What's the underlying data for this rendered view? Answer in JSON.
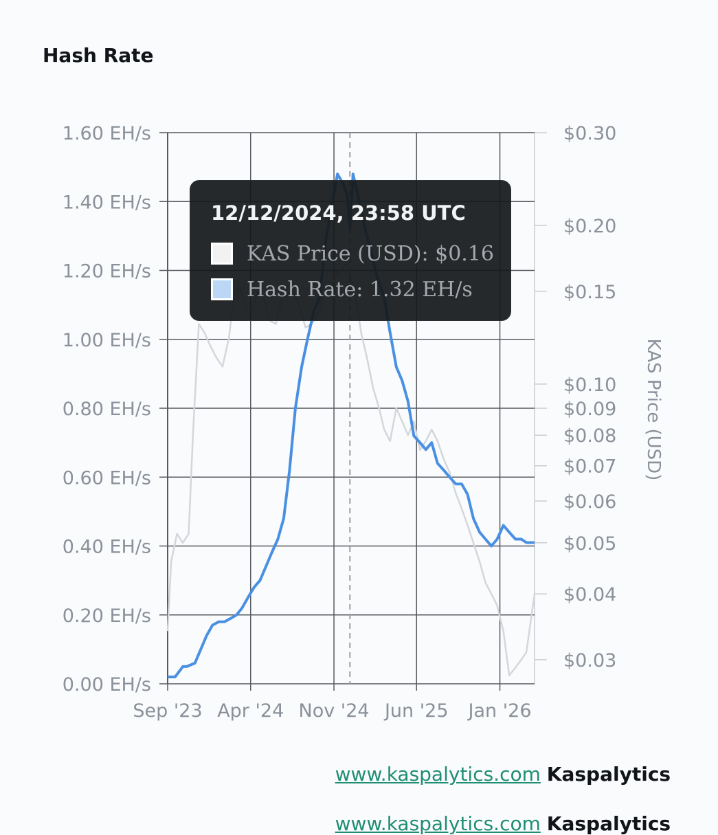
{
  "page": {
    "title": "Hash Rate"
  },
  "colors": {
    "hash_rate": "#4a90e2",
    "price": "#d3d7dc",
    "grid": "#55595f",
    "axis_text": "#8a919a",
    "link": "#1f8e74"
  },
  "chart_data": {
    "type": "line",
    "title": "Hash Rate",
    "x_ticks": [
      "Sep '23",
      "Apr '24",
      "Nov '24",
      "Jun '25",
      "Jan '26"
    ],
    "xlim": [
      "2023-09-01",
      "2026-03-31"
    ],
    "left_axis": {
      "label": "",
      "ticks": [
        "0.00 EH/s",
        "0.20 EH/s",
        "0.40 EH/s",
        "0.60 EH/s",
        "0.80 EH/s",
        "1.00 EH/s",
        "1.20 EH/s",
        "1.40 EH/s",
        "1.60 EH/s"
      ],
      "ylim": [
        0,
        1.6
      ]
    },
    "right_axis": {
      "label": "KAS Price (USD)",
      "scale": "log",
      "ticks": [
        "$0.03",
        "$0.04",
        "$0.05",
        "$0.06",
        "$0.07",
        "$0.08",
        "$0.09",
        "$0.10",
        "$0.15",
        "$0.20",
        "$0.30"
      ],
      "ylim": [
        0.027,
        0.3
      ]
    },
    "grid": true,
    "crosshair_date": "2024-12-12",
    "tooltip": {
      "title": "12/12/2024, 23:58 UTC",
      "rows": [
        {
          "label": "KAS Price (USD): $0.16",
          "swatch": "#f2f2f2"
        },
        {
          "label": "Hash Rate: 1.32 EH/s",
          "swatch": "#bcd7f6"
        }
      ]
    },
    "series": [
      {
        "name": "Hash Rate",
        "axis": "left",
        "x": [
          "2023-09-01",
          "2023-09-20",
          "2023-10-10",
          "2023-10-20",
          "2023-11-10",
          "2023-11-25",
          "2023-12-10",
          "2023-12-25",
          "2024-01-10",
          "2024-01-25",
          "2024-02-10",
          "2024-02-25",
          "2024-03-10",
          "2024-03-25",
          "2024-04-10",
          "2024-04-25",
          "2024-05-10",
          "2024-05-25",
          "2024-06-10",
          "2024-06-25",
          "2024-07-10",
          "2024-07-25",
          "2024-08-10",
          "2024-08-25",
          "2024-09-10",
          "2024-09-25",
          "2024-10-10",
          "2024-10-25",
          "2024-11-10",
          "2024-11-25",
          "2024-12-05",
          "2024-12-12",
          "2024-12-20",
          "2025-01-05",
          "2025-01-20",
          "2025-02-05",
          "2025-02-20",
          "2025-03-10",
          "2025-03-25",
          "2025-04-10",
          "2025-04-25",
          "2025-05-10",
          "2025-05-25",
          "2025-06-10",
          "2025-06-25",
          "2025-07-10",
          "2025-07-25",
          "2025-08-10",
          "2025-08-25",
          "2025-09-10",
          "2025-09-25",
          "2025-10-10",
          "2025-10-25",
          "2025-11-10",
          "2025-11-25",
          "2025-12-10",
          "2025-12-25",
          "2026-01-10",
          "2026-01-25",
          "2026-02-10",
          "2026-02-25",
          "2026-03-10",
          "2026-03-31"
        ],
        "y": [
          0.02,
          0.02,
          0.05,
          0.05,
          0.06,
          0.1,
          0.14,
          0.17,
          0.18,
          0.18,
          0.19,
          0.2,
          0.22,
          0.25,
          0.28,
          0.3,
          0.34,
          0.38,
          0.42,
          0.48,
          0.62,
          0.8,
          0.92,
          1.0,
          1.08,
          1.12,
          1.28,
          1.38,
          1.48,
          1.45,
          1.42,
          1.32,
          1.48,
          1.4,
          1.32,
          1.25,
          1.18,
          1.12,
          1.02,
          0.92,
          0.88,
          0.82,
          0.72,
          0.7,
          0.68,
          0.7,
          0.64,
          0.62,
          0.6,
          0.58,
          0.58,
          0.55,
          0.48,
          0.44,
          0.42,
          0.4,
          0.42,
          0.46,
          0.44,
          0.42,
          0.42,
          0.41,
          0.41
        ]
      },
      {
        "name": "KAS Price (USD)",
        "axis": "right",
        "x": [
          "2023-09-01",
          "2023-09-10",
          "2023-09-25",
          "2023-10-10",
          "2023-10-25",
          "2023-11-05",
          "2023-11-20",
          "2023-12-05",
          "2023-12-20",
          "2024-01-05",
          "2024-01-20",
          "2024-02-05",
          "2024-02-20",
          "2024-03-05",
          "2024-03-20",
          "2024-04-05",
          "2024-04-20",
          "2024-05-05",
          "2024-05-20",
          "2024-06-05",
          "2024-06-20",
          "2024-07-05",
          "2024-07-20",
          "2024-08-05",
          "2024-08-20",
          "2024-09-05",
          "2024-09-20",
          "2024-10-05",
          "2024-10-20",
          "2024-11-05",
          "2024-11-20",
          "2024-12-05",
          "2024-12-12",
          "2024-12-25",
          "2025-01-10",
          "2025-01-25",
          "2025-02-10",
          "2025-02-25",
          "2025-03-10",
          "2025-03-25",
          "2025-04-10",
          "2025-04-25",
          "2025-05-10",
          "2025-05-25",
          "2025-06-10",
          "2025-06-25",
          "2025-07-10",
          "2025-07-25",
          "2025-08-10",
          "2025-08-25",
          "2025-09-10",
          "2025-09-25",
          "2025-10-10",
          "2025-10-25",
          "2025-11-10",
          "2025-11-25",
          "2025-12-10",
          "2025-12-25",
          "2026-01-10",
          "2026-01-25",
          "2026-02-10",
          "2026-02-25",
          "2026-03-10",
          "2026-03-31"
        ],
        "y": [
          0.034,
          0.046,
          0.052,
          0.05,
          0.052,
          0.08,
          0.13,
          0.125,
          0.118,
          0.112,
          0.108,
          0.122,
          0.15,
          0.152,
          0.14,
          0.138,
          0.15,
          0.145,
          0.132,
          0.13,
          0.145,
          0.148,
          0.15,
          0.14,
          0.128,
          0.13,
          0.135,
          0.148,
          0.15,
          0.16,
          0.165,
          0.17,
          0.16,
          0.15,
          0.125,
          0.112,
          0.098,
          0.09,
          0.082,
          0.078,
          0.09,
          0.085,
          0.08,
          0.085,
          0.075,
          0.078,
          0.082,
          0.078,
          0.072,
          0.068,
          0.062,
          0.058,
          0.054,
          0.05,
          0.046,
          0.042,
          0.04,
          0.038,
          0.034,
          0.028,
          0.029,
          0.03,
          0.031,
          0.04
        ]
      }
    ]
  },
  "footer": {
    "link_text": "www.kaspalytics.com",
    "brand": "Kaspalytics",
    "link_text_2": "www.kaspalytics.com",
    "brand_2": "Kaspalytics"
  }
}
